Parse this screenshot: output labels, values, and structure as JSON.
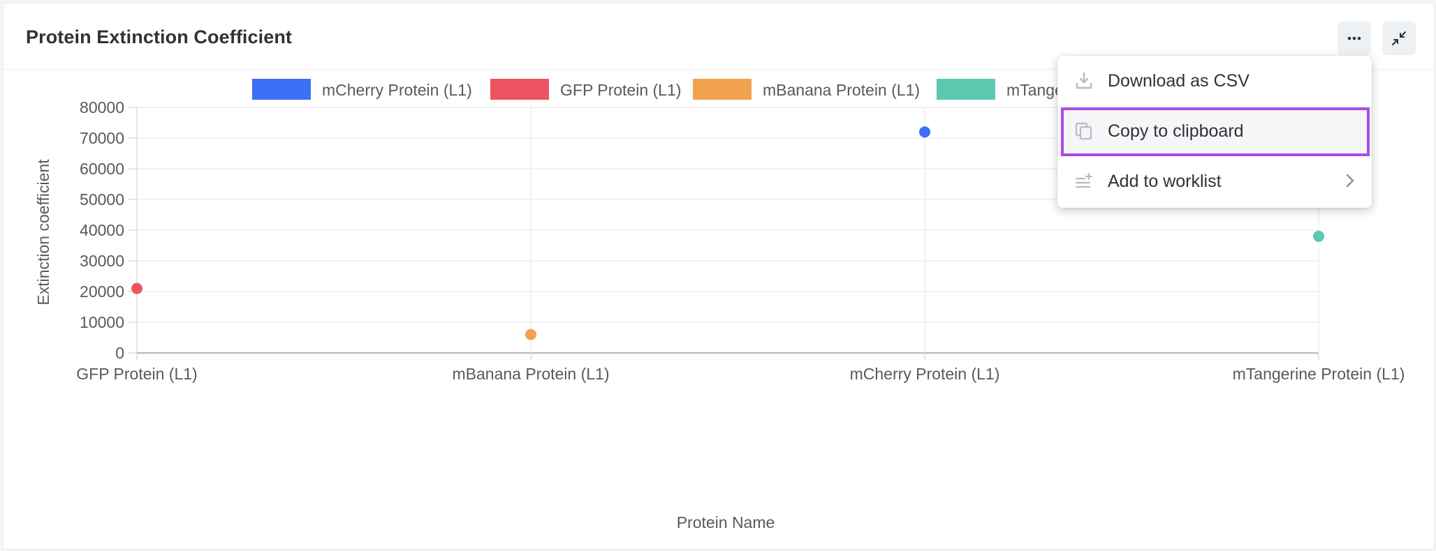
{
  "card": {
    "title": "Protein Extinction Coefficient"
  },
  "header_buttons": {
    "more_icon": "more-horizontal-icon",
    "collapse_icon": "collapse-arrows-icon"
  },
  "menu": {
    "items": [
      {
        "label": "Download as CSV",
        "icon": "download-icon"
      },
      {
        "label": "Copy to clipboard",
        "icon": "copy-icon",
        "highlighted": true
      },
      {
        "label": "Add to worklist",
        "icon": "add-list-icon",
        "submenu": true
      }
    ]
  },
  "chart_data": {
    "type": "scatter",
    "xlabel": "Protein Name",
    "ylabel": "Extinction coefficient",
    "categories": [
      "GFP Protein (L1)",
      "mBanana Protein (L1)",
      "mCherry Protein (L1)",
      "mTangerine Protein (L1)"
    ],
    "ylim": [
      0,
      80000
    ],
    "yticks": [
      "0",
      "10000",
      "20000",
      "30000",
      "40000",
      "50000",
      "60000",
      "70000",
      "80000"
    ],
    "grid": true,
    "legend_position": "top",
    "series": [
      {
        "name": "mCherry Protein (L1)",
        "color": "#3b6ff5",
        "x": "mCherry Protein (L1)",
        "y": 72000
      },
      {
        "name": "GFP Protein (L1)",
        "color": "#ec5461",
        "x": "GFP Protein (L1)",
        "y": 21000
      },
      {
        "name": "mBanana Protein (L1)",
        "color": "#f2a24e",
        "x": "mBanana Protein (L1)",
        "y": 6000
      },
      {
        "name": "mTangerine Protein (L1)",
        "color": "#5bc8b0",
        "x": "mTangerine Protein (L1)",
        "y": 38000
      }
    ]
  }
}
